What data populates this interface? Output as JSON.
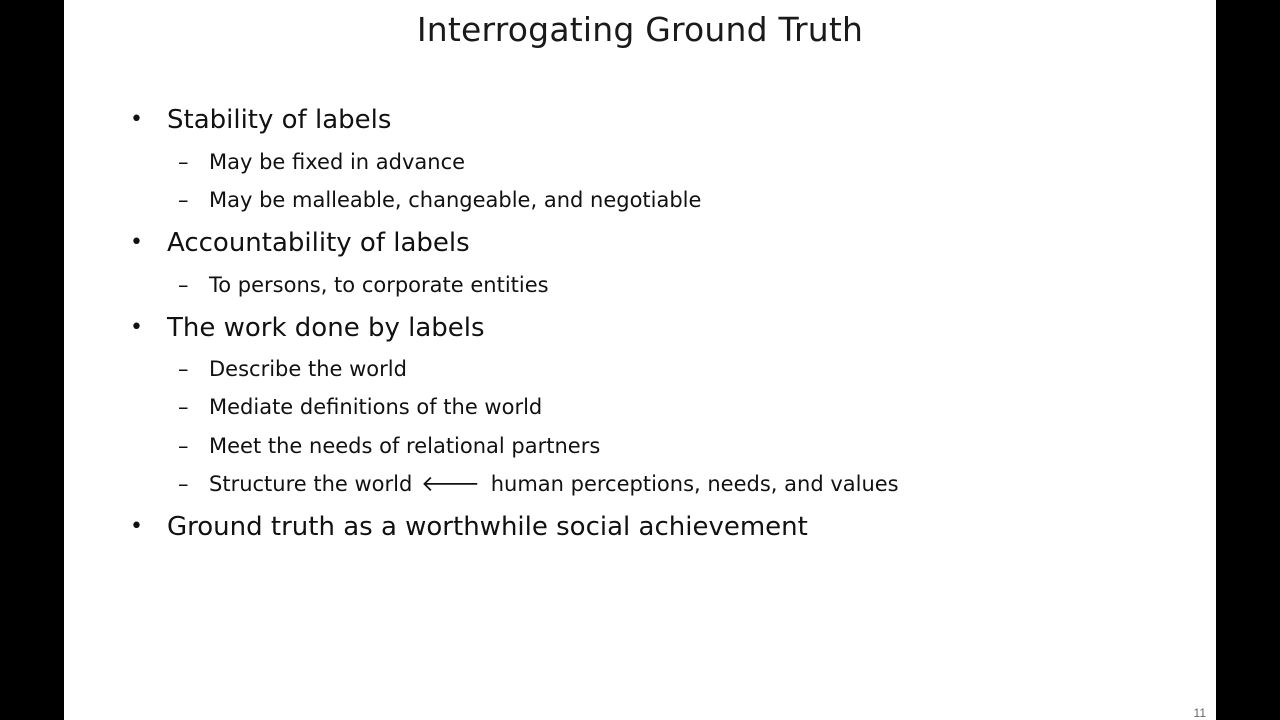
{
  "slide": {
    "title": "Interrogating Ground Truth",
    "page_number": "11",
    "bullet_marker": "•",
    "dash_marker": "–",
    "bullets": [
      {
        "text": "Stability of labels",
        "subs": [
          {
            "text": "May be fixed in advance"
          },
          {
            "text": "May be malleable, changeable, and negotiable"
          }
        ]
      },
      {
        "text": "Accountability of labels",
        "subs": [
          {
            "text": "To persons, to corporate entities"
          }
        ]
      },
      {
        "text": "The work done by labels",
        "subs": [
          {
            "text": "Describe the world"
          },
          {
            "text": "Mediate definitions of the world"
          },
          {
            "text": "Meet the needs of relational partners"
          },
          {
            "text_before": "Structure the world",
            "arrow": "🡐",
            "text_after": "human perceptions, needs, and values"
          }
        ]
      },
      {
        "text": "Ground truth as a worthwhile social achievement",
        "subs": []
      }
    ]
  }
}
